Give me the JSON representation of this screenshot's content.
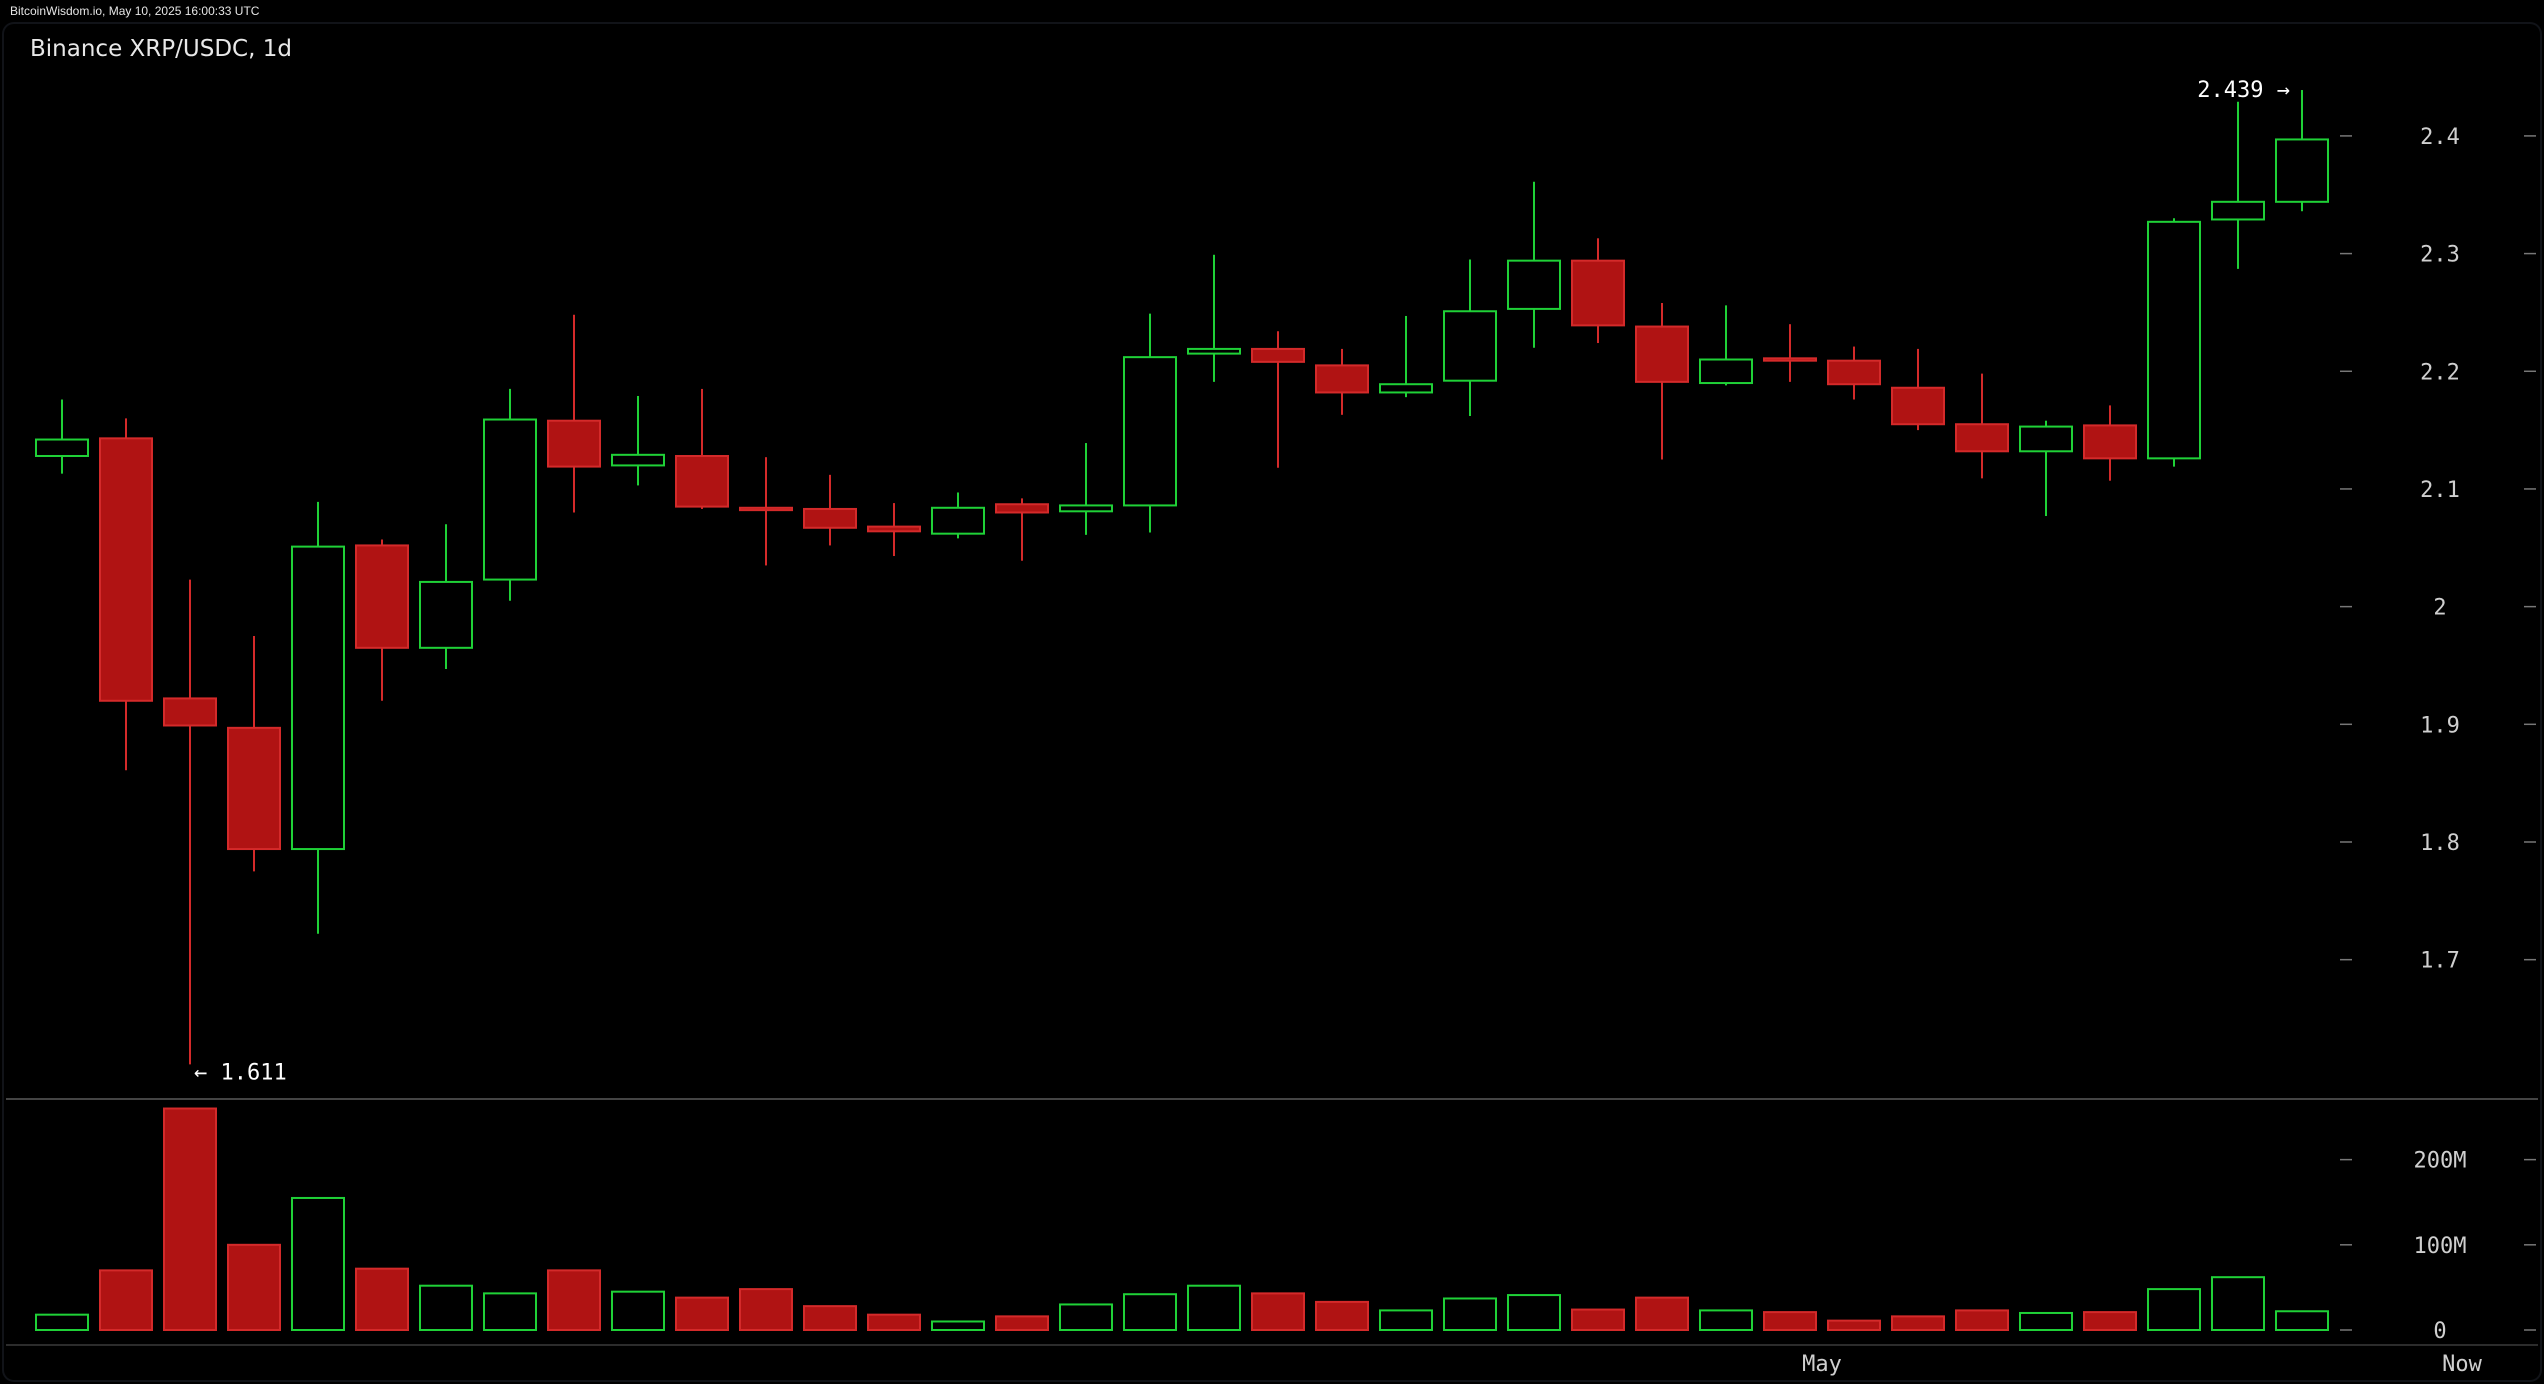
{
  "page": {
    "watermark": "BitcoinWisdom.io, May 10, 2025 16:00:33 UTC"
  },
  "chart_data": {
    "type": "candlestick",
    "title": "Binance XRP/USDC, 1d",
    "up_color": "#1fd137",
    "down_color": "#b01313",
    "background_color": "#000000",
    "grid": false,
    "price_axis": {
      "ylim": [
        1.585,
        2.49
      ],
      "ticks": [
        1.7,
        1.8,
        1.9,
        2.0,
        2.1,
        2.2,
        2.3,
        2.4
      ],
      "tick_labels": [
        "1.7",
        "1.8",
        "1.9",
        "2",
        "2.1",
        "2.2",
        "2.3",
        "2.4"
      ]
    },
    "volume_axis": {
      "ylim": [
        0,
        270
      ],
      "ticks": [
        0,
        100,
        200
      ],
      "tick_labels": [
        "0",
        "100M",
        "200M"
      ]
    },
    "x_axis": {
      "labels": [
        {
          "text": "May",
          "index": 27.5
        },
        {
          "text": "Now",
          "index": 37.5
        }
      ]
    },
    "annotations": {
      "high": {
        "value": 2.439,
        "text": "2.439 →",
        "index": 35
      },
      "low": {
        "value": 1.611,
        "text": "← 1.611",
        "index": 2
      }
    },
    "candles": [
      {
        "o": 2.128,
        "h": 2.176,
        "l": 2.113,
        "c": 2.142,
        "v": 18
      },
      {
        "o": 2.143,
        "h": 2.16,
        "l": 1.861,
        "c": 1.92,
        "v": 70
      },
      {
        "o": 1.922,
        "h": 2.023,
        "l": 1.611,
        "c": 1.899,
        "v": 260
      },
      {
        "o": 1.897,
        "h": 1.975,
        "l": 1.775,
        "c": 1.794,
        "v": 100
      },
      {
        "o": 1.794,
        "h": 2.089,
        "l": 1.722,
        "c": 2.051,
        "v": 155
      },
      {
        "o": 2.052,
        "h": 2.057,
        "l": 1.92,
        "c": 1.965,
        "v": 72
      },
      {
        "o": 1.965,
        "h": 2.07,
        "l": 1.947,
        "c": 2.021,
        "v": 52
      },
      {
        "o": 2.023,
        "h": 2.185,
        "l": 2.005,
        "c": 2.159,
        "v": 43
      },
      {
        "o": 2.158,
        "h": 2.248,
        "l": 2.08,
        "c": 2.119,
        "v": 70
      },
      {
        "o": 2.12,
        "h": 2.179,
        "l": 2.103,
        "c": 2.129,
        "v": 45
      },
      {
        "o": 2.128,
        "h": 2.185,
        "l": 2.083,
        "c": 2.085,
        "v": 38
      },
      {
        "o": 2.084,
        "h": 2.127,
        "l": 2.035,
        "c": 2.082,
        "v": 48
      },
      {
        "o": 2.083,
        "h": 2.112,
        "l": 2.052,
        "c": 2.067,
        "v": 28
      },
      {
        "o": 2.068,
        "h": 2.088,
        "l": 2.043,
        "c": 2.064,
        "v": 18
      },
      {
        "o": 2.062,
        "h": 2.097,
        "l": 2.058,
        "c": 2.084,
        "v": 10
      },
      {
        "o": 2.087,
        "h": 2.092,
        "l": 2.039,
        "c": 2.08,
        "v": 16
      },
      {
        "o": 2.081,
        "h": 2.139,
        "l": 2.061,
        "c": 2.086,
        "v": 30
      },
      {
        "o": 2.086,
        "h": 2.249,
        "l": 2.063,
        "c": 2.212,
        "v": 42
      },
      {
        "o": 2.215,
        "h": 2.299,
        "l": 2.191,
        "c": 2.219,
        "v": 52
      },
      {
        "o": 2.219,
        "h": 2.234,
        "l": 2.118,
        "c": 2.208,
        "v": 43
      },
      {
        "o": 2.205,
        "h": 2.219,
        "l": 2.163,
        "c": 2.182,
        "v": 33
      },
      {
        "o": 2.182,
        "h": 2.247,
        "l": 2.178,
        "c": 2.189,
        "v": 23
      },
      {
        "o": 2.192,
        "h": 2.295,
        "l": 2.162,
        "c": 2.251,
        "v": 37
      },
      {
        "o": 2.253,
        "h": 2.361,
        "l": 2.22,
        "c": 2.294,
        "v": 41
      },
      {
        "o": 2.294,
        "h": 2.313,
        "l": 2.224,
        "c": 2.239,
        "v": 24
      },
      {
        "o": 2.238,
        "h": 2.258,
        "l": 2.125,
        "c": 2.191,
        "v": 38
      },
      {
        "o": 2.19,
        "h": 2.256,
        "l": 2.188,
        "c": 2.21,
        "v": 23
      },
      {
        "o": 2.211,
        "h": 2.24,
        "l": 2.191,
        "c": 2.209,
        "v": 21
      },
      {
        "o": 2.209,
        "h": 2.221,
        "l": 2.176,
        "c": 2.189,
        "v": 11
      },
      {
        "o": 2.186,
        "h": 2.219,
        "l": 2.15,
        "c": 2.155,
        "v": 16
      },
      {
        "o": 2.155,
        "h": 2.198,
        "l": 2.109,
        "c": 2.132,
        "v": 23
      },
      {
        "o": 2.132,
        "h": 2.158,
        "l": 2.077,
        "c": 2.153,
        "v": 20
      },
      {
        "o": 2.154,
        "h": 2.171,
        "l": 2.107,
        "c": 2.126,
        "v": 21
      },
      {
        "o": 2.126,
        "h": 2.33,
        "l": 2.119,
        "c": 2.327,
        "v": 48
      },
      {
        "o": 2.329,
        "h": 2.429,
        "l": 2.287,
        "c": 2.344,
        "v": 62
      },
      {
        "o": 2.344,
        "h": 2.439,
        "l": 2.336,
        "c": 2.397,
        "v": 22
      }
    ]
  }
}
